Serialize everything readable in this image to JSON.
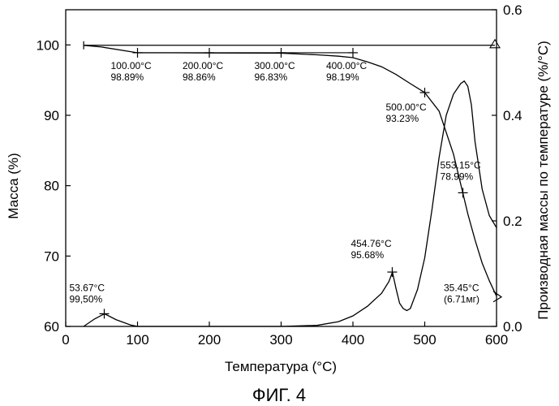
{
  "chart_data": {
    "type": "line",
    "caption": "ФИГ. 4",
    "xlabel": "Температура (°C)",
    "ylabel": "Масса (%)",
    "y2label": "Производная массы по температуре (%/°C)",
    "xlim": [
      0,
      600
    ],
    "ylim": [
      60,
      105
    ],
    "y2lim": [
      0,
      0.6
    ],
    "x_ticks": [
      0,
      100,
      200,
      300,
      400,
      500,
      600
    ],
    "y_ticks": [
      60,
      70,
      80,
      90,
      100
    ],
    "y2_ticks": [
      0.0,
      0.2,
      0.4,
      0.6
    ],
    "y2_tick_labels": [
      "0.0",
      "0.2",
      "0.4",
      "0.6"
    ],
    "grid": false,
    "series": [
      {
        "axis": "left",
        "x": [
          25,
          50,
          100,
          150,
          200,
          250,
          300,
          350,
          380,
          400,
          420,
          440,
          460,
          480,
          500,
          520,
          540,
          553,
          560,
          570,
          580,
          590,
          600
        ],
        "y": [
          99.95,
          99.7,
          98.89,
          98.88,
          98.86,
          98.85,
          98.83,
          98.6,
          98.4,
          98.19,
          97.6,
          96.9,
          95.8,
          94.5,
          93.23,
          90.6,
          84.5,
          78.99,
          76.0,
          72.3,
          69.0,
          66.5,
          64.3
        ]
      },
      {
        "axis": "right",
        "x": [
          25,
          40,
          54,
          70,
          90,
          100,
          200,
          300,
          350,
          380,
          400,
          420,
          440,
          450,
          455,
          460,
          465,
          470,
          475,
          480,
          490,
          500,
          510,
          520,
          530,
          540,
          550,
          555,
          560,
          565,
          570,
          580,
          590,
          600
        ],
        "y": [
          0.0,
          0.014,
          0.024,
          0.013,
          0.003,
          0.0,
          0.0,
          0.0,
          0.002,
          0.009,
          0.02,
          0.038,
          0.063,
          0.085,
          0.103,
          0.072,
          0.044,
          0.034,
          0.03,
          0.034,
          0.07,
          0.13,
          0.22,
          0.32,
          0.4,
          0.44,
          0.46,
          0.465,
          0.455,
          0.42,
          0.35,
          0.26,
          0.21,
          0.187
        ]
      }
    ],
    "annotations": [
      {
        "axis": "left",
        "x": 100,
        "y": 98.89,
        "lines": [
          "100.00°C",
          "98.89%"
        ]
      },
      {
        "axis": "left",
        "x": 200,
        "y": 98.86,
        "lines": [
          "200.00°C",
          "98.86%"
        ]
      },
      {
        "axis": "left",
        "x": 300,
        "y": 98.83,
        "lines": [
          "300.00°C",
          "96.83%"
        ]
      },
      {
        "axis": "left",
        "x": 400,
        "y": 98.19,
        "lines": [
          "400.00°C",
          "98.19%"
        ]
      },
      {
        "axis": "left",
        "x": 500,
        "y": 93.23,
        "lines": [
          "500.00°C",
          "93.23%"
        ]
      },
      {
        "axis": "left",
        "x": 553.15,
        "y": 78.99,
        "lines": [
          "553.15°C",
          "78.99%"
        ]
      },
      {
        "axis": "right",
        "x": 53.67,
        "y": 0.024,
        "lines": [
          "53.67°C",
          "99,50%"
        ]
      },
      {
        "axis": "right",
        "x": 454.76,
        "y": 0.103,
        "lines": [
          "454.76°C",
          "95.68%"
        ]
      },
      {
        "axis": "left",
        "x": 600,
        "y": 64.3,
        "lines": [
          "35.45°C",
          "(6.71мг)"
        ]
      }
    ]
  }
}
